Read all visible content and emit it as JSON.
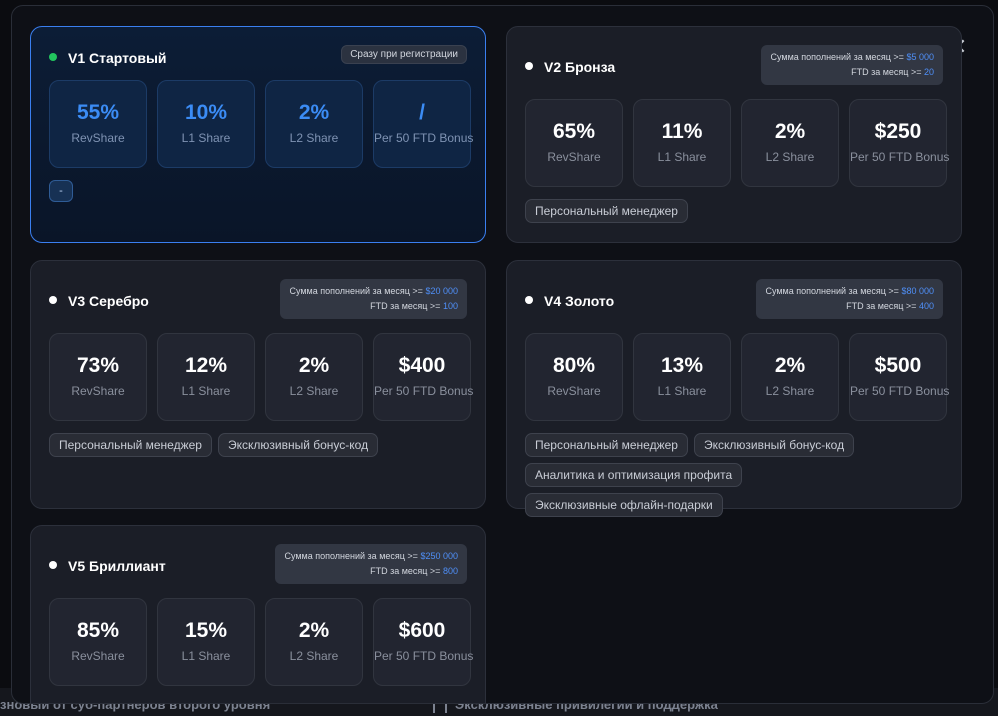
{
  "backdrop": {
    "left_text": "зновый от суб-партнеров второго уровня",
    "right_text": "Эксклюзивные привилегии и поддержка"
  },
  "modal": {
    "close_symbol": "✕"
  },
  "levels": [
    {
      "title": "V1 Стартовый",
      "badge": "Сразу при регистрации",
      "stats": [
        {
          "value": "55%",
          "label": "RevShare"
        },
        {
          "value": "10%",
          "label": "L1 Share"
        },
        {
          "value": "2%",
          "label": "L2 Share"
        },
        {
          "value": "/",
          "label": "Per 50 FTD Bonus"
        }
      ],
      "perk_placeholder": "-"
    },
    {
      "title": "V2 Бронза",
      "req": {
        "deposit_label": "Сумма пополнений за месяц >=",
        "deposit_value": "$5 000",
        "ftd_label": "FTD за месяц >=",
        "ftd_value": "20"
      },
      "stats": [
        {
          "value": "65%",
          "label": "RevShare"
        },
        {
          "value": "11%",
          "label": "L1 Share"
        },
        {
          "value": "2%",
          "label": "L2 Share"
        },
        {
          "value": "$250",
          "label": "Per 50 FTD Bonus"
        }
      ],
      "perks": [
        "Персональный менеджер"
      ]
    },
    {
      "title": "V3 Серебро",
      "req": {
        "deposit_label": "Сумма пополнений за месяц >=",
        "deposit_value": "$20 000",
        "ftd_label": "FTD за месяц >=",
        "ftd_value": "100"
      },
      "stats": [
        {
          "value": "73%",
          "label": "RevShare"
        },
        {
          "value": "12%",
          "label": "L1 Share"
        },
        {
          "value": "2%",
          "label": "L2 Share"
        },
        {
          "value": "$400",
          "label": "Per 50 FTD Bonus"
        }
      ],
      "perks": [
        "Персональный менеджер",
        "Эксклюзивный бонус-код"
      ]
    },
    {
      "title": "V4 Золото",
      "req": {
        "deposit_label": "Сумма пополнений за месяц >=",
        "deposit_value": "$80 000",
        "ftd_label": "FTD за месяц >=",
        "ftd_value": "400"
      },
      "stats": [
        {
          "value": "80%",
          "label": "RevShare"
        },
        {
          "value": "13%",
          "label": "L1 Share"
        },
        {
          "value": "2%",
          "label": "L2 Share"
        },
        {
          "value": "$500",
          "label": "Per 50 FTD Bonus"
        }
      ],
      "perks": [
        "Персональный менеджер",
        "Эксклюзивный бонус-код",
        "Аналитика и оптимизация профита",
        "Эксклюзивные офлайн-подарки"
      ]
    },
    {
      "title": "V5 Бриллиант",
      "req": {
        "deposit_label": "Сумма пополнений за месяц >=",
        "deposit_value": "$250 000",
        "ftd_label": "FTD за месяц >=",
        "ftd_value": "800"
      },
      "stats": [
        {
          "value": "85%",
          "label": "RevShare"
        },
        {
          "value": "15%",
          "label": "L1 Share"
        },
        {
          "value": "2%",
          "label": "L2 Share"
        },
        {
          "value": "$600",
          "label": "Per 50 FTD Bonus"
        }
      ]
    }
  ]
}
